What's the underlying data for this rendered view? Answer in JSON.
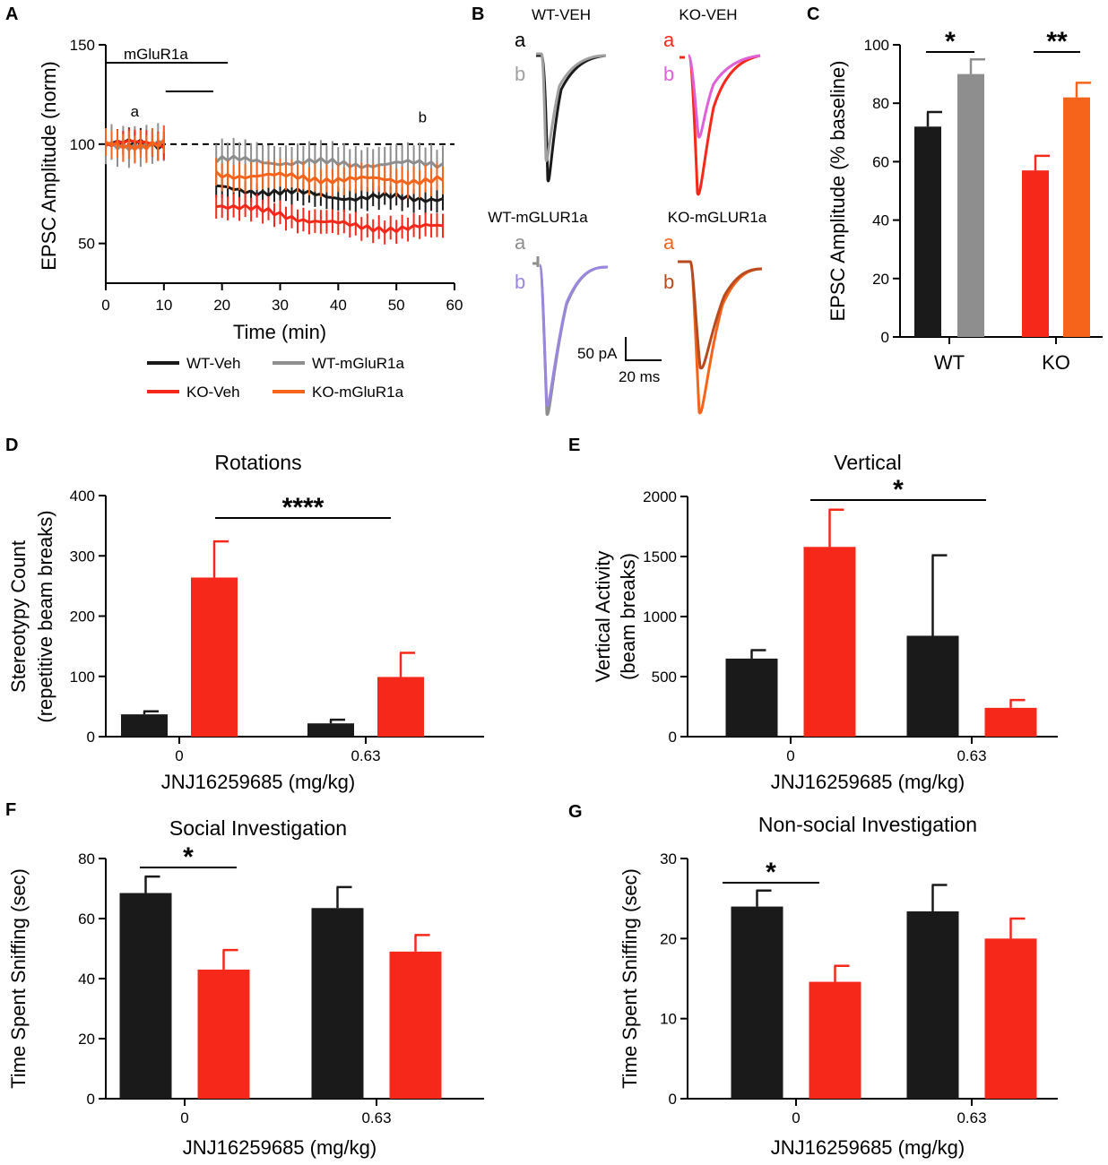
{
  "colors": {
    "black": "#1a1a1a",
    "red": "#f5281a",
    "gray": "#8e8e8e",
    "orange": "#f5641a",
    "pink": "#e060d8",
    "purple": "#9a86dc",
    "brown": "#b84a1e",
    "lightgray": "#a0a0a0"
  },
  "panel_labels": [
    "A",
    "B",
    "C",
    "D",
    "E",
    "F",
    "G"
  ],
  "panel_b": {
    "trace_titles": [
      "WT-VEH",
      "KO-VEH",
      "WT-mGLUR1a",
      "KO-mGLUR1a"
    ],
    "label_a": "a",
    "label_b": "b",
    "scale_current": "50 pA",
    "scale_time": "20 ms"
  },
  "chart_data": [
    {
      "id": "A",
      "type": "line",
      "xlabel": "Time (min)",
      "ylabel": "EPSC Amplitude (norm)",
      "xlim": [
        0,
        60
      ],
      "ylim": [
        30,
        150
      ],
      "xticks": [
        0,
        10,
        20,
        30,
        40,
        50,
        60
      ],
      "yticks": [
        50,
        100,
        150
      ],
      "reference_line": 100,
      "drug_bar_label": "mGluR1a",
      "drug_bar_range": [
        0,
        21
      ],
      "second_bar_range": [
        10.3,
        18.5
      ],
      "window_labels": [
        {
          "text": "a",
          "x": 5,
          "y": 114
        },
        {
          "text": "b",
          "x": 54.5,
          "y": 111
        }
      ],
      "legend": [
        "WT-Veh",
        "WT-mGluR1a",
        "KO-Veh",
        "KO-mGluR1a"
      ],
      "series": [
        {
          "name": "WT-Veh",
          "color_key": "black",
          "baseline": 100,
          "post_start": 78,
          "post_end": 73,
          "err": 6
        },
        {
          "name": "WT-mGluR1a",
          "color_key": "gray",
          "baseline": 100,
          "post_start": 92,
          "post_end": 90,
          "err": 9
        },
        {
          "name": "KO-Veh",
          "color_key": "red",
          "baseline": 100,
          "post_start": 70,
          "post_end": 58,
          "err": 6
        },
        {
          "name": "KO-mGluR1a",
          "color_key": "orange",
          "baseline": 100,
          "post_start": 85,
          "post_end": 82,
          "err": 7
        }
      ]
    },
    {
      "id": "C",
      "type": "bar",
      "ylabel": "EPSC Amplitude (% baseline)",
      "categories": [
        "WT",
        "KO"
      ],
      "ylim": [
        0,
        100
      ],
      "yticks": [
        0,
        20,
        40,
        60,
        80,
        100
      ],
      "bars": [
        {
          "group": "WT",
          "value": 72,
          "err": 5,
          "color_key": "black"
        },
        {
          "group": "WT",
          "value": 90,
          "err": 5,
          "color_key": "gray"
        },
        {
          "group": "KO",
          "value": 57,
          "err": 5,
          "color_key": "red"
        },
        {
          "group": "KO",
          "value": 82,
          "err": 5,
          "color_key": "orange"
        }
      ],
      "significance": [
        {
          "text": "*",
          "from": 0,
          "to": 1
        },
        {
          "text": "**",
          "from": 2,
          "to": 3
        }
      ]
    },
    {
      "id": "D",
      "type": "bar",
      "title": "Rotations",
      "ylabel": [
        "Stereotypy Count",
        "(repetitive beam breaks)"
      ],
      "xlabel": "JNJ16259685 (mg/kg)",
      "categories": [
        "0",
        "0.63"
      ],
      "ylim": [
        0,
        400
      ],
      "yticks": [
        0,
        100,
        200,
        300,
        400
      ],
      "series": [
        {
          "name": "WT",
          "color_key": "black",
          "values": [
            37,
            22
          ],
          "err": [
            5,
            6
          ]
        },
        {
          "name": "KO",
          "color_key": "red",
          "values": [
            264,
            99
          ],
          "err": [
            60,
            40
          ]
        }
      ],
      "significance": [
        {
          "text": "****",
          "from": [
            0,
            1
          ],
          "to": [
            1,
            1
          ]
        }
      ]
    },
    {
      "id": "E",
      "type": "bar",
      "title": "Vertical",
      "ylabel": [
        "Vertical Activity",
        "(beam breaks)"
      ],
      "xlabel": "JNJ16259685 (mg/kg)",
      "categories": [
        "0",
        "0.63"
      ],
      "ylim": [
        0,
        2000
      ],
      "yticks": [
        0,
        500,
        1000,
        1500,
        2000
      ],
      "series": [
        {
          "name": "WT",
          "color_key": "black",
          "values": [
            650,
            840
          ],
          "err": [
            70,
            670
          ]
        },
        {
          "name": "KO",
          "color_key": "red",
          "values": [
            1580,
            240
          ],
          "err": [
            310,
            65
          ]
        }
      ],
      "significance": [
        {
          "text": "*",
          "from": [
            0,
            1
          ],
          "to": [
            1,
            1
          ]
        }
      ]
    },
    {
      "id": "F",
      "type": "bar",
      "title": "Social Investigation",
      "ylabel": [
        "Time Spent Sniffing (sec)"
      ],
      "xlabel": "JNJ16259685 (mg/kg)",
      "categories": [
        "0",
        "0.63"
      ],
      "ylim": [
        0,
        80
      ],
      "yticks": [
        0,
        20,
        40,
        60,
        80
      ],
      "series": [
        {
          "name": "WT",
          "color_key": "black",
          "values": [
            68.5,
            63.5
          ],
          "err": [
            5.5,
            7
          ]
        },
        {
          "name": "KO",
          "color_key": "red",
          "values": [
            43,
            49
          ],
          "err": [
            6.5,
            5.5
          ]
        }
      ],
      "significance": [
        {
          "text": "*",
          "from": [
            0,
            0
          ],
          "to": [
            0,
            1
          ]
        }
      ]
    },
    {
      "id": "G",
      "type": "bar",
      "title": "Non-social Investigation",
      "ylabel": [
        "Time Spent Sniffing (sec)"
      ],
      "xlabel": "JNJ16259685 (mg/kg)",
      "categories": [
        "0",
        "0.63"
      ],
      "ylim": [
        0,
        30
      ],
      "yticks": [
        0,
        10,
        20,
        30
      ],
      "series": [
        {
          "name": "WT",
          "color_key": "black",
          "values": [
            24,
            23.4
          ],
          "err": [
            2,
            3.3
          ]
        },
        {
          "name": "KO",
          "color_key": "red",
          "values": [
            14.6,
            20
          ],
          "err": [
            2,
            2.5
          ]
        }
      ],
      "significance": [
        {
          "text": "*",
          "from": [
            0,
            0
          ],
          "to": [
            0,
            1
          ]
        }
      ]
    }
  ]
}
